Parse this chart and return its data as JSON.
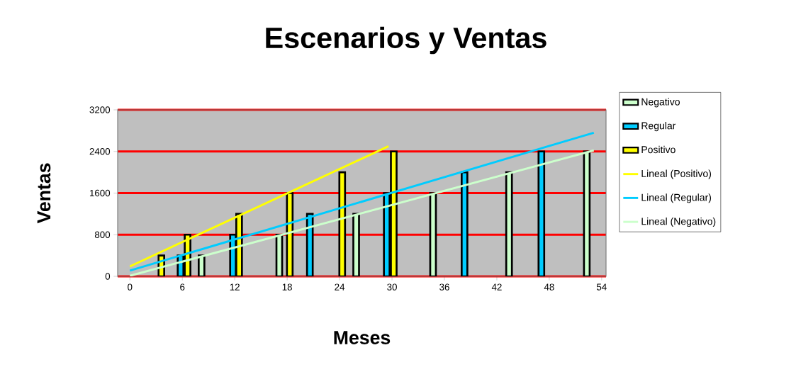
{
  "chart_data": {
    "type": "bar",
    "title": "Escenarios y Ventas",
    "xlabel": "Meses",
    "ylabel": "Ventas",
    "xlim": [
      -1.4,
      54.5
    ],
    "xticks": [
      0,
      6,
      12,
      18,
      24,
      30,
      36,
      42,
      48,
      54
    ],
    "ylim": [
      0,
      3200
    ],
    "yticks": [
      0,
      800,
      1600,
      2400,
      3200
    ],
    "grid": "y",
    "legend": "right",
    "series": [
      {
        "name": "Negativo",
        "color": "#ccffcc",
        "x": [
          8.2,
          17.1,
          25.9,
          34.7,
          43.4,
          52.3
        ],
        "values": [
          400,
          800,
          1200,
          1600,
          2000,
          2400
        ]
      },
      {
        "name": "Regular",
        "color": "#00ccff",
        "x": [
          5.8,
          11.8,
          20.6,
          29.4,
          38.3,
          47.1
        ],
        "values": [
          400,
          800,
          1200,
          1600,
          2000,
          2400
        ]
      },
      {
        "name": "Positivo",
        "color": "#ffff00",
        "x": [
          3.6,
          6.6,
          12.5,
          18.3,
          24.3,
          30.2
        ],
        "values": [
          400,
          800,
          1200,
          1600,
          2000,
          2400
        ]
      },
      {
        "name": "Lineal (Positivo)",
        "type": "line",
        "color": "#ffff00",
        "x": [
          0,
          29.6
        ],
        "values": [
          190,
          2500
        ]
      },
      {
        "name": "Lineal (Regular)",
        "type": "line",
        "color": "#00ccff",
        "x": [
          0,
          53.1
        ],
        "values": [
          110,
          2760
        ]
      },
      {
        "name": "Lineal (Negativo)",
        "type": "line",
        "color": "#ccffcc",
        "x": [
          0,
          53.1
        ],
        "values": [
          10,
          2420
        ]
      }
    ]
  }
}
